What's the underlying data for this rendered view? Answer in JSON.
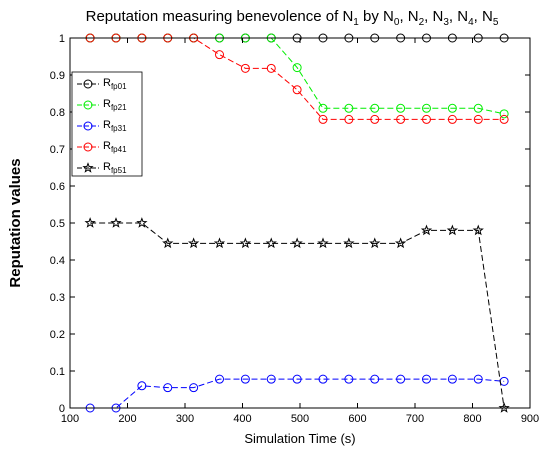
{
  "chart_data": {
    "type": "line",
    "title": {
      "prefix": "Reputation measuring benevolence of N",
      "parts": [
        {
          "text": "1",
          "sub": true
        },
        {
          "text": " by N",
          "sub": false
        },
        {
          "text": "0",
          "sub": true
        },
        {
          "text": ", N",
          "sub": false
        },
        {
          "text": "2",
          "sub": true
        },
        {
          "text": ", N",
          "sub": false
        },
        {
          "text": "3",
          "sub": true
        },
        {
          "text": ", N",
          "sub": false
        },
        {
          "text": "4",
          "sub": true
        },
        {
          "text": ", N",
          "sub": false
        },
        {
          "text": "5",
          "sub": true
        }
      ]
    },
    "xlabel": "Simulation Time (s)",
    "ylabel": "Reputation values",
    "xlim": [
      100,
      900
    ],
    "ylim": [
      0,
      1
    ],
    "xticks": [
      "100",
      "200",
      "300",
      "400",
      "500",
      "600",
      "700",
      "800",
      "900"
    ],
    "yticks": [
      "0",
      "0.1",
      "0.2",
      "0.3",
      "0.4",
      "0.5",
      "0.6",
      "0.7",
      "0.8",
      "0.9",
      "1"
    ],
    "grid": false,
    "legend_position": "upper-left",
    "x": [
      135,
      180,
      225,
      270,
      315,
      360,
      405,
      450,
      495,
      540,
      585,
      630,
      675,
      720,
      765,
      810,
      855
    ],
    "series": [
      {
        "name": "R",
        "sub": "fp01",
        "color": "#000000",
        "marker": "circle",
        "values": [
          1,
          1,
          1,
          1,
          1,
          1,
          1,
          1,
          1,
          1,
          1,
          1,
          1,
          1,
          1,
          1,
          1
        ]
      },
      {
        "name": "R",
        "sub": "fp21",
        "color": "#00ee00",
        "marker": "circle",
        "values": [
          1,
          1,
          1,
          1,
          1,
          1,
          1,
          1,
          0.92,
          0.81,
          0.81,
          0.81,
          0.81,
          0.81,
          0.81,
          0.81,
          0.795
        ]
      },
      {
        "name": "R",
        "sub": "fp31",
        "color": "#0000ff",
        "marker": "circle",
        "values": [
          0,
          0,
          0.06,
          0.055,
          0.055,
          0.078,
          0.078,
          0.078,
          0.078,
          0.078,
          0.078,
          0.078,
          0.078,
          0.078,
          0.078,
          0.078,
          0.072
        ]
      },
      {
        "name": "R",
        "sub": "fp41",
        "color": "#ff0000",
        "marker": "circle",
        "values": [
          1,
          1,
          1,
          1,
          1,
          0.955,
          0.918,
          0.918,
          0.86,
          0.78,
          0.78,
          0.78,
          0.78,
          0.78,
          0.78,
          0.78,
          0.78
        ]
      },
      {
        "name": "R",
        "sub": "fp51",
        "color": "#000000",
        "marker": "star",
        "values": [
          0.5,
          0.5,
          0.5,
          0.445,
          0.445,
          0.445,
          0.445,
          0.445,
          0.445,
          0.445,
          0.445,
          0.445,
          0.445,
          0.48,
          0.48,
          0.48,
          0
        ]
      }
    ]
  }
}
